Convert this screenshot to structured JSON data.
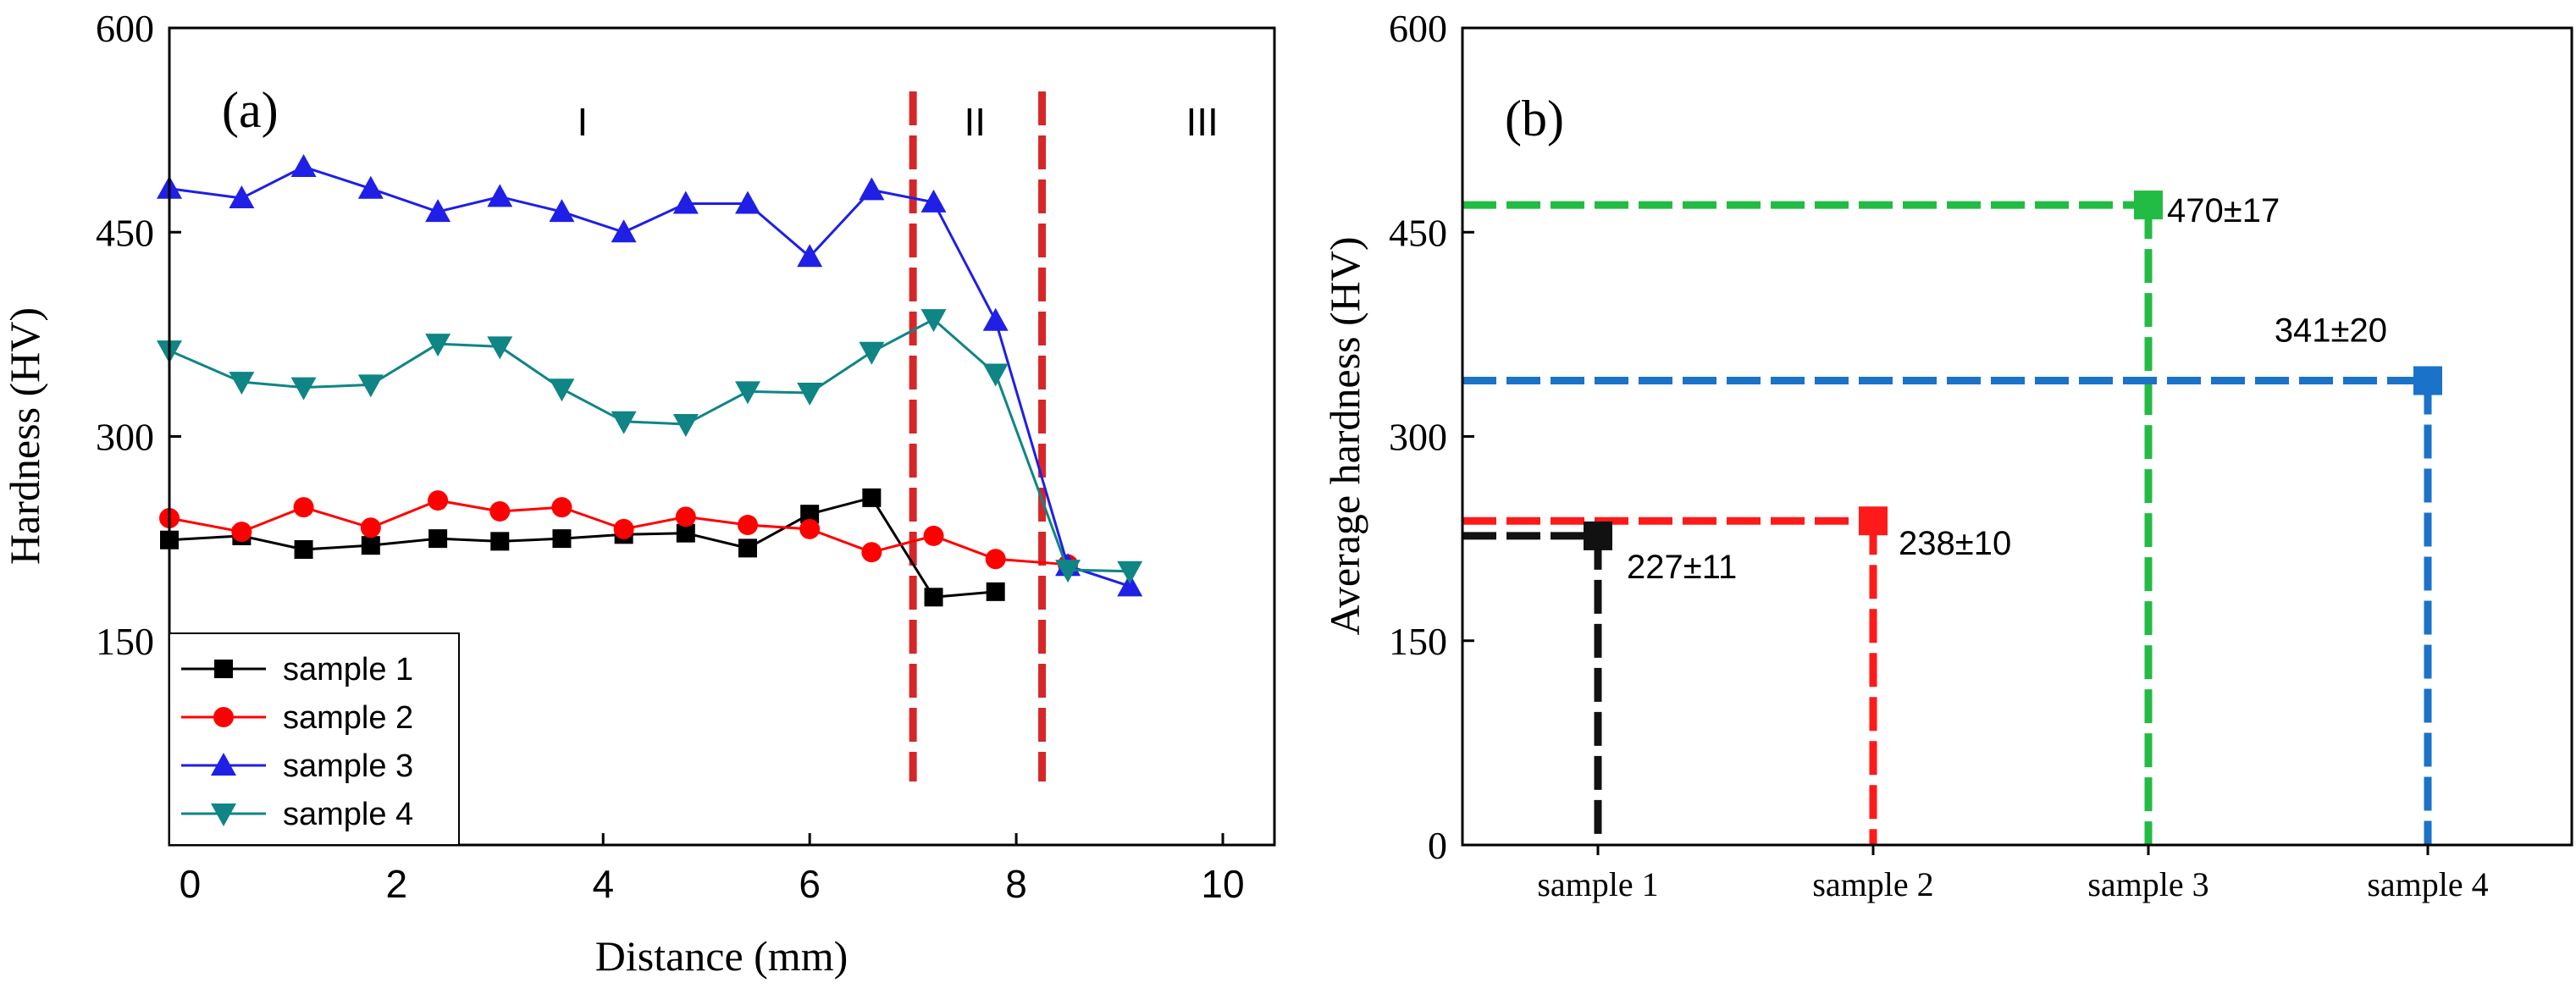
{
  "chart_data": [
    {
      "panel": "(a)",
      "type": "line",
      "xlabel": "Distance (mm)",
      "ylabel": "Hardness (HV)",
      "xlim": [
        -0.2,
        10.5
      ],
      "ylim": [
        0,
        600
      ],
      "xticks": [
        0,
        2,
        4,
        6,
        8,
        10
      ],
      "yticks": [
        150,
        300,
        450,
        600
      ],
      "region_labels": [
        {
          "text": "I",
          "x": 3.8
        },
        {
          "text": "II",
          "x": 7.6
        },
        {
          "text": "III",
          "x": 9.8
        }
      ],
      "boundaries": [
        {
          "x": 7.0,
          "color": "#d62728"
        },
        {
          "x": 8.25,
          "color": "#d62728"
        }
      ],
      "legend": {
        "placement": "bottom-left"
      },
      "series": [
        {
          "name": "sample 1",
          "color": "#000000",
          "marker": "square",
          "x": [
            -0.2,
            0.5,
            1.1,
            1.75,
            2.4,
            3.0,
            3.6,
            4.2,
            4.8,
            5.4,
            6.0,
            6.6,
            7.2,
            7.8
          ],
          "y": [
            224,
            227,
            217,
            220,
            225,
            223,
            225,
            228,
            229,
            218,
            243,
            255,
            182,
            186
          ]
        },
        {
          "name": "sample 2",
          "color": "#ff0000",
          "marker": "circle",
          "x": [
            -0.2,
            0.5,
            1.1,
            1.75,
            2.4,
            3.0,
            3.6,
            4.2,
            4.8,
            5.4,
            6.0,
            6.6,
            7.2,
            7.8,
            8.5
          ],
          "y": [
            240,
            230,
            248,
            233,
            253,
            245,
            248,
            232,
            241,
            235,
            232,
            215,
            227,
            210,
            206
          ]
        },
        {
          "name": "sample 3",
          "color": "#1f1fe6",
          "marker": "triangle-up",
          "x": [
            -0.2,
            0.5,
            1.1,
            1.75,
            2.4,
            3.0,
            3.6,
            4.2,
            4.8,
            5.4,
            6.0,
            6.6,
            7.2,
            7.8,
            8.5,
            9.1
          ],
          "y": [
            482,
            475,
            498,
            482,
            465,
            476,
            465,
            450,
            471,
            471,
            432,
            481,
            472,
            385,
            205,
            190
          ]
        },
        {
          "name": "sample 4",
          "color": "#0f8585",
          "marker": "triangle-down",
          "x": [
            -0.2,
            0.5,
            1.1,
            1.75,
            2.4,
            3.0,
            3.6,
            4.2,
            4.8,
            5.4,
            6.0,
            6.6,
            7.2,
            7.8,
            8.5,
            9.1
          ],
          "y": [
            363,
            340,
            336,
            338,
            368,
            366,
            335,
            311,
            309,
            333,
            332,
            362,
            386,
            346,
            202,
            201
          ]
        }
      ]
    },
    {
      "panel": "(b)",
      "type": "scatter",
      "ylabel": "Average hardness (HV)",
      "ylim": [
        0,
        600
      ],
      "yticks": [
        0,
        150,
        300,
        450,
        600
      ],
      "categories": [
        "sample 1",
        "sample 2",
        "sample 3",
        "sample 4"
      ],
      "values": [
        227,
        238,
        470,
        341
      ],
      "labels": [
        "227±11",
        "238±10",
        "470±17",
        "341±20"
      ],
      "colors": [
        "#111111",
        "#ff1a1a",
        "#22bb44",
        "#1a73c8"
      ]
    }
  ]
}
